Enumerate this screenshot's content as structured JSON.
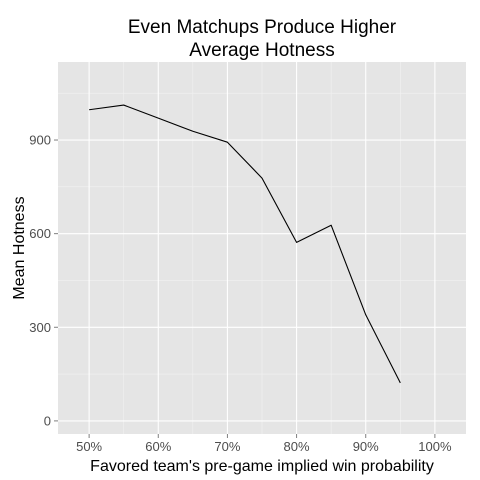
{
  "chart_data": {
    "type": "line",
    "title_lines": [
      "Even Matchups Produce Higher",
      "Average Hotness"
    ],
    "xlabel": "Favored team's pre-game implied win probability",
    "ylabel": "Mean Hotness",
    "x_ticks": [
      {
        "value": 0.5,
        "label": "50%"
      },
      {
        "value": 0.6,
        "label": "60%"
      },
      {
        "value": 0.7,
        "label": "70%"
      },
      {
        "value": 0.8,
        "label": "80%"
      },
      {
        "value": 0.9,
        "label": "90%"
      },
      {
        "value": 1.0,
        "label": "100%"
      }
    ],
    "y_ticks": [
      {
        "value": 0,
        "label": "0"
      },
      {
        "value": 300,
        "label": "300"
      },
      {
        "value": 600,
        "label": "600"
      },
      {
        "value": 900,
        "label": "900"
      }
    ],
    "xlim": [
      0.455,
      1.045
    ],
    "ylim": [
      -42,
      1150
    ],
    "grid": true,
    "series": [
      {
        "x": [
          0.5,
          0.55,
          0.6,
          0.65,
          0.7,
          0.75,
          0.8,
          0.85,
          0.9,
          0.95
        ],
        "y": [
          997,
          1012,
          970,
          928,
          893,
          778,
          572,
          627,
          340,
          122
        ]
      }
    ],
    "colors": {
      "panel": "#e5e5e5",
      "grid_major": "#ffffff",
      "grid_minor": "#f2f2f2",
      "line": "#000000"
    }
  }
}
